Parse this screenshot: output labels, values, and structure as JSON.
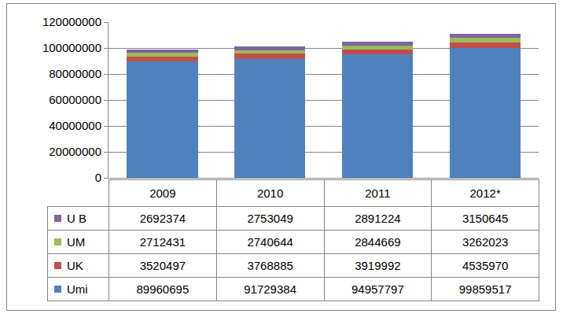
{
  "chart_data": {
    "type": "bar",
    "stacked": true,
    "categories": [
      "2009",
      "2010",
      "2011",
      "2012*"
    ],
    "series": [
      {
        "name": "Umi",
        "color": "#4f81bd",
        "values": [
          89960695,
          91729384,
          94957797,
          99859517
        ]
      },
      {
        "name": "UK",
        "color": "#c0504d",
        "values": [
          3520497,
          3768885,
          3919992,
          4535970
        ]
      },
      {
        "name": "UM",
        "color": "#9bbb59",
        "values": [
          2712431,
          2740644,
          2844669,
          3262023
        ]
      },
      {
        "name": "U B",
        "color": "#8064a2",
        "values": [
          2692374,
          2753049,
          2891224,
          3150645
        ]
      }
    ],
    "ylim": [
      0,
      120000000
    ],
    "yticks": [
      0,
      20000000,
      40000000,
      60000000,
      80000000,
      100000000,
      120000000
    ],
    "grid": true
  }
}
